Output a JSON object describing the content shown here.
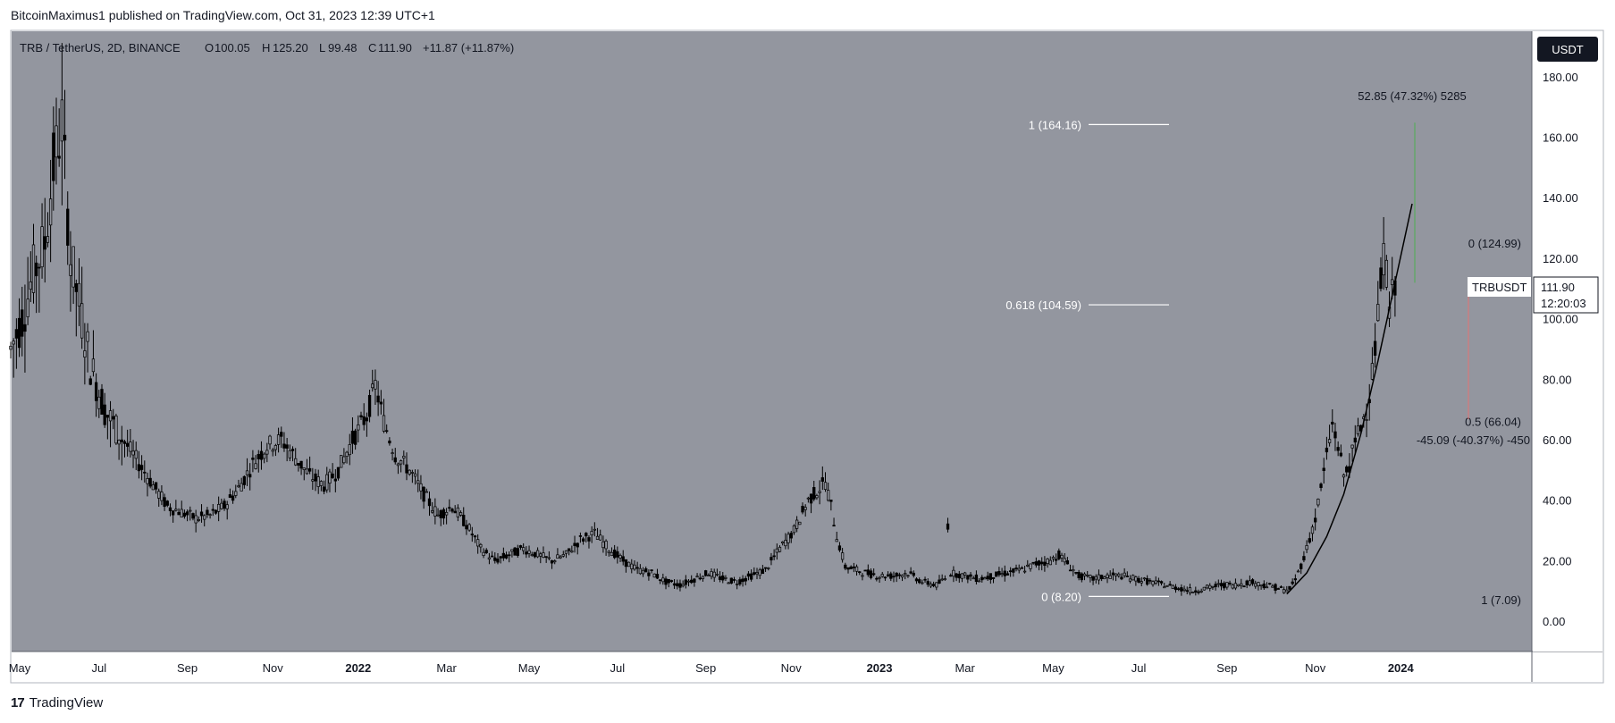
{
  "header": {
    "published": "BitcoinMaximus1 published on TradingView.com, Oct 31, 2023 12:39 UTC+1"
  },
  "footer": {
    "brand": "TradingView",
    "logo_glyph": "17"
  },
  "colors": {
    "chart_bg": "#93969f",
    "candle": "#000000",
    "fib_line": "#ffffff",
    "label_white": "#ffffff",
    "measure_up": "#4caf50",
    "measure_down": "#e57373",
    "price_tag_bg": "#ffffff",
    "currency_bg": "#131722"
  },
  "chart_data": {
    "type": "candlestick",
    "title": "TRB / TetherUS, 2D, BINANCE",
    "symbol": "TRBUSDT",
    "currency": "USDT",
    "ohlc": {
      "o_label": "O",
      "o": "100.05",
      "h_label": "H",
      "h": "125.20",
      "l_label": "L",
      "l": "99.48",
      "c_label": "C",
      "c": "111.90",
      "change": "+11.87 (+11.87%)"
    },
    "last_price": "111.90",
    "countdown": "12:20:03",
    "y_range": [
      -10,
      195
    ],
    "y_ticks": [
      "180.00",
      "160.00",
      "140.00",
      "120.00",
      "100.00",
      "80.00",
      "60.00",
      "40.00",
      "20.00",
      "0.00"
    ],
    "x_ticks": [
      "May",
      "Jul",
      "Sep",
      "Nov",
      "2022",
      "Mar",
      "May",
      "Jul",
      "Sep",
      "Nov",
      "2023",
      "Mar",
      "May",
      "Jul",
      "Sep",
      "Nov",
      "2024"
    ],
    "x_bold": [
      "2022",
      "2023",
      "2024"
    ],
    "fib_left": [
      {
        "label": "1 (164.16)",
        "value": 164.16
      },
      {
        "label": "0.618 (104.59)",
        "value": 104.59
      },
      {
        "label": "0 (8.20)",
        "value": 8.2
      }
    ],
    "fib_right": [
      {
        "label": "0 (124.99)",
        "value": 124.99
      },
      {
        "label": "0.5 (66.04)",
        "value": 66.04
      },
      {
        "label": "1 (7.09)",
        "value": 7.09
      }
    ],
    "measure_up": {
      "label": "52.85 (47.32%) 5285",
      "from": 111.9,
      "to": 164.8
    },
    "measure_down": {
      "label": "-45.09 (-40.37%) -450",
      "from": 111.9,
      "to": 66.8
    },
    "price_path": [
      [
        0,
        90
      ],
      [
        4,
        100
      ],
      [
        8,
        115
      ],
      [
        12,
        125
      ],
      [
        15,
        150
      ],
      [
        18,
        165
      ],
      [
        21,
        120
      ],
      [
        24,
        105
      ],
      [
        28,
        85
      ],
      [
        33,
        70
      ],
      [
        38,
        62
      ],
      [
        43,
        55
      ],
      [
        50,
        45
      ],
      [
        55,
        38
      ],
      [
        60,
        36
      ],
      [
        65,
        34
      ],
      [
        70,
        35
      ],
      [
        75,
        38
      ],
      [
        80,
        44
      ],
      [
        85,
        52
      ],
      [
        90,
        58
      ],
      [
        95,
        60
      ],
      [
        100,
        54
      ],
      [
        105,
        48
      ],
      [
        110,
        45
      ],
      [
        115,
        50
      ],
      [
        120,
        60
      ],
      [
        125,
        68
      ],
      [
        128,
        78
      ],
      [
        131,
        66
      ],
      [
        135,
        55
      ],
      [
        140,
        50
      ],
      [
        145,
        42
      ],
      [
        150,
        35
      ],
      [
        155,
        38
      ],
      [
        160,
        32
      ],
      [
        165,
        24
      ],
      [
        170,
        20
      ],
      [
        175,
        22
      ],
      [
        180,
        24
      ],
      [
        185,
        22
      ],
      [
        190,
        20
      ],
      [
        195,
        22
      ],
      [
        200,
        27
      ],
      [
        205,
        29
      ],
      [
        210,
        24
      ],
      [
        215,
        20
      ],
      [
        220,
        17
      ],
      [
        225,
        16
      ],
      [
        230,
        13
      ],
      [
        235,
        12
      ],
      [
        240,
        14
      ],
      [
        245,
        16
      ],
      [
        250,
        14
      ],
      [
        255,
        13
      ],
      [
        260,
        15
      ],
      [
        265,
        17
      ],
      [
        270,
        24
      ],
      [
        275,
        30
      ],
      [
        280,
        40
      ],
      [
        284,
        44
      ],
      [
        286,
        46
      ],
      [
        288,
        38
      ],
      [
        290,
        28
      ],
      [
        293,
        18
      ],
      [
        300,
        16
      ],
      [
        305,
        15
      ],
      [
        310,
        15
      ],
      [
        315,
        16
      ],
      [
        320,
        13
      ],
      [
        325,
        12
      ],
      [
        328,
        14
      ],
      [
        329,
        32
      ],
      [
        330,
        16
      ],
      [
        335,
        15
      ],
      [
        340,
        14
      ],
      [
        345,
        15
      ],
      [
        350,
        16
      ],
      [
        355,
        17
      ],
      [
        360,
        19
      ],
      [
        365,
        20
      ],
      [
        368,
        22
      ],
      [
        372,
        18
      ],
      [
        375,
        15
      ],
      [
        380,
        14
      ],
      [
        385,
        15
      ],
      [
        390,
        15
      ],
      [
        395,
        14
      ],
      [
        400,
        13
      ],
      [
        405,
        12
      ],
      [
        410,
        11
      ],
      [
        415,
        10
      ],
      [
        420,
        11
      ],
      [
        425,
        12
      ],
      [
        430,
        12
      ],
      [
        435,
        13
      ],
      [
        440,
        12
      ],
      [
        445,
        11
      ],
      [
        448,
        10
      ],
      [
        450,
        12
      ],
      [
        452,
        16
      ],
      [
        455,
        24
      ],
      [
        458,
        34
      ],
      [
        460,
        44
      ],
      [
        462,
        55
      ],
      [
        464,
        65
      ],
      [
        466,
        58
      ],
      [
        468,
        48
      ],
      [
        470,
        52
      ],
      [
        473,
        62
      ],
      [
        476,
        70
      ],
      [
        478,
        82
      ],
      [
        480,
        100
      ],
      [
        481,
        112
      ],
      [
        482,
        120
      ],
      [
        483,
        116
      ],
      [
        484,
        104
      ],
      [
        485,
        108
      ],
      [
        486,
        112
      ]
    ],
    "arc_curve": [
      [
        448,
        9
      ],
      [
        455,
        16
      ],
      [
        462,
        28
      ],
      [
        468,
        42
      ],
      [
        474,
        62
      ],
      [
        480,
        86
      ],
      [
        486,
        112
      ],
      [
        492,
        138
      ]
    ]
  }
}
